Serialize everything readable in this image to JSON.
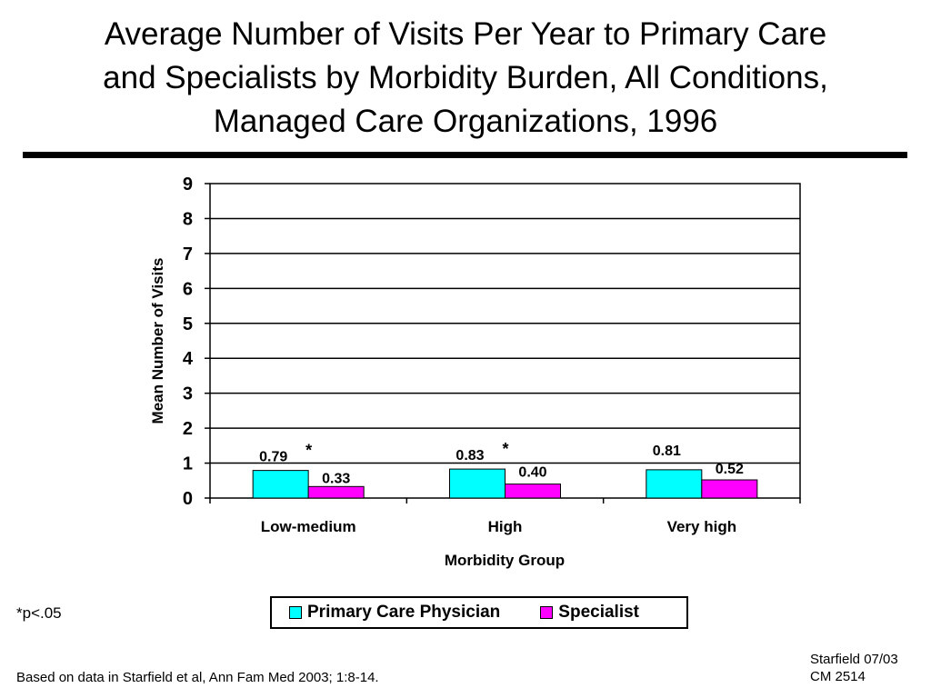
{
  "title_lines": [
    "Average Number of Visits Per Year to Primary Care",
    "and Specialists by Morbidity Burden, All Conditions,",
    "Managed Care Organizations, 1996"
  ],
  "footnote": "*p<.05",
  "source": "Based on data in Starfield et al, Ann Fam Med 2003; 1:8-14.",
  "credit_lines": [
    "Starfield 07/03",
    "CM 2514"
  ],
  "colors": {
    "primary": "#00ffff",
    "specialist": "#ff00ff"
  },
  "chart_data": {
    "type": "bar",
    "title": "Average Number of Visits Per Year to Primary Care and Specialists by Morbidity Burden, All Conditions, Managed Care Organizations, 1996",
    "xlabel": "Morbidity Group",
    "ylabel": "Mean Number of Visits",
    "ylim": [
      0,
      9
    ],
    "yticks": [
      "0",
      "1",
      "2",
      "3",
      "4",
      "5",
      "6",
      "7",
      "8",
      "9"
    ],
    "grid": true,
    "legend_position": "bottom",
    "categories": [
      "Low-medium",
      "High",
      "Very high"
    ],
    "series": [
      {
        "name": "Primary Care Physician",
        "values": [
          0.79,
          0.83,
          0.81
        ],
        "labels": [
          "0.79",
          "0.83",
          "0.81"
        ],
        "color": "#00ffff"
      },
      {
        "name": "Specialist",
        "values": [
          0.33,
          0.4,
          0.52
        ],
        "labels": [
          "0.33",
          "0.40",
          "0.52"
        ],
        "color": "#ff00ff"
      }
    ],
    "annotations": [
      {
        "text": "*",
        "category": "Low-medium"
      },
      {
        "text": "*",
        "category": "High"
      }
    ]
  }
}
